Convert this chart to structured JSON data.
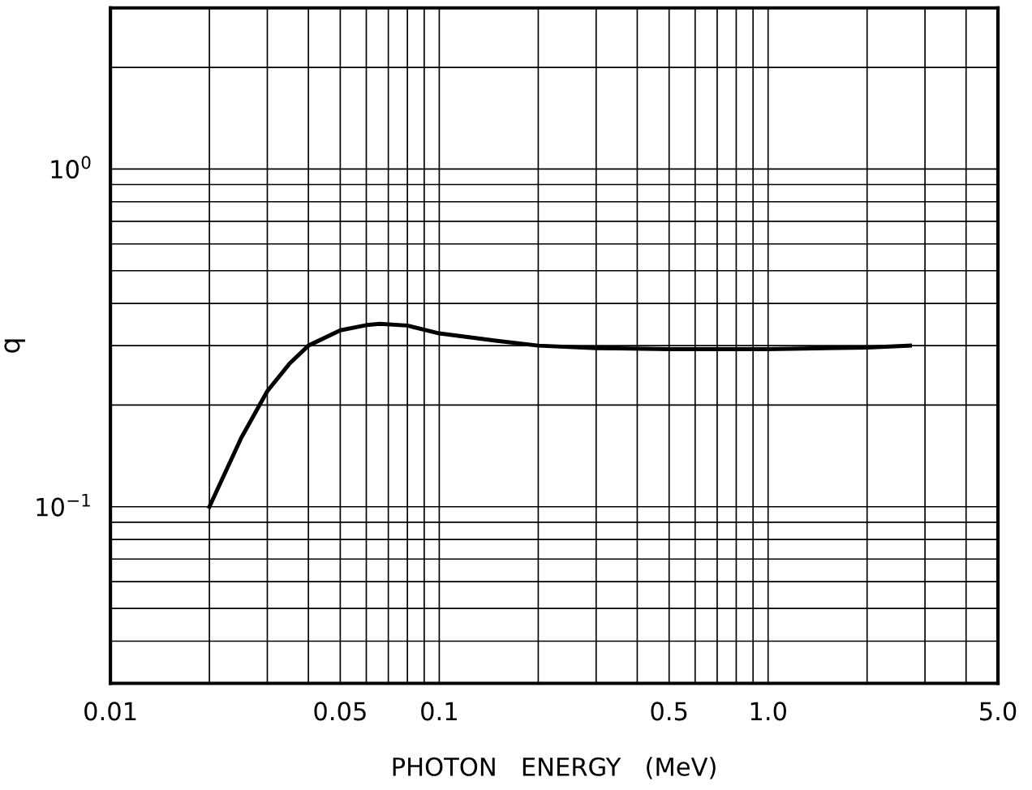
{
  "chart_data": {
    "type": "line",
    "xlabel": "PHOTON   ENERGY   (MeV)",
    "ylabel": "q",
    "log": "xy",
    "grid": true,
    "line_style": "solid",
    "marker": "none",
    "x": [
      0.02,
      0.025,
      0.03,
      0.035,
      0.04,
      0.05,
      0.06,
      0.066,
      0.08,
      0.1,
      0.15,
      0.2,
      0.3,
      0.5,
      1.0,
      2.0,
      2.7
    ],
    "series": [
      {
        "color": "#000000",
        "values": [
          0.1,
          0.16,
          0.22,
          0.265,
          0.3,
          0.333,
          0.345,
          0.348,
          0.344,
          0.326,
          0.31,
          0.3,
          0.295,
          0.293,
          0.293,
          0.296,
          0.3
        ]
      }
    ],
    "xlim": [
      0.01,
      5.0
    ],
    "ylim": [
      0.03,
      3.0
    ],
    "xticks": [
      {
        "value": 0.01,
        "label": "0.01"
      },
      {
        "value": 0.02,
        "label": null
      },
      {
        "value": 0.03,
        "label": null
      },
      {
        "value": 0.04,
        "label": null
      },
      {
        "value": 0.05,
        "label": "0.05"
      },
      {
        "value": 0.06,
        "label": null
      },
      {
        "value": 0.07,
        "label": null
      },
      {
        "value": 0.08,
        "label": null
      },
      {
        "value": 0.09,
        "label": null
      },
      {
        "value": 0.1,
        "label": "0.1"
      },
      {
        "value": 0.2,
        "label": null
      },
      {
        "value": 0.3,
        "label": null
      },
      {
        "value": 0.4,
        "label": null
      },
      {
        "value": 0.5,
        "label": "0.5"
      },
      {
        "value": 0.6,
        "label": null
      },
      {
        "value": 0.7,
        "label": null
      },
      {
        "value": 0.8,
        "label": null
      },
      {
        "value": 0.9,
        "label": null
      },
      {
        "value": 1.0,
        "label": "1.0"
      },
      {
        "value": 2.0,
        "label": null
      },
      {
        "value": 3.0,
        "label": null
      },
      {
        "value": 4.0,
        "label": null
      },
      {
        "value": 5.0,
        "label": "5.0"
      }
    ],
    "yticks": [
      {
        "value": 0.04,
        "label": null
      },
      {
        "value": 0.05,
        "label": null
      },
      {
        "value": 0.06,
        "label": null
      },
      {
        "value": 0.07,
        "label": null
      },
      {
        "value": 0.08,
        "label": null
      },
      {
        "value": 0.09,
        "label": null
      },
      {
        "value": 0.1,
        "label": "10$^{−1}$"
      },
      {
        "value": 0.2,
        "label": null
      },
      {
        "value": 0.3,
        "label": null
      },
      {
        "value": 0.4,
        "label": null
      },
      {
        "value": 0.5,
        "label": null
      },
      {
        "value": 0.6,
        "label": null
      },
      {
        "value": 0.7,
        "label": null
      },
      {
        "value": 0.8,
        "label": null
      },
      {
        "value": 0.9,
        "label": null
      },
      {
        "value": 1.0,
        "label": "10$^{0}$"
      },
      {
        "value": 2.0,
        "label": null
      }
    ]
  }
}
